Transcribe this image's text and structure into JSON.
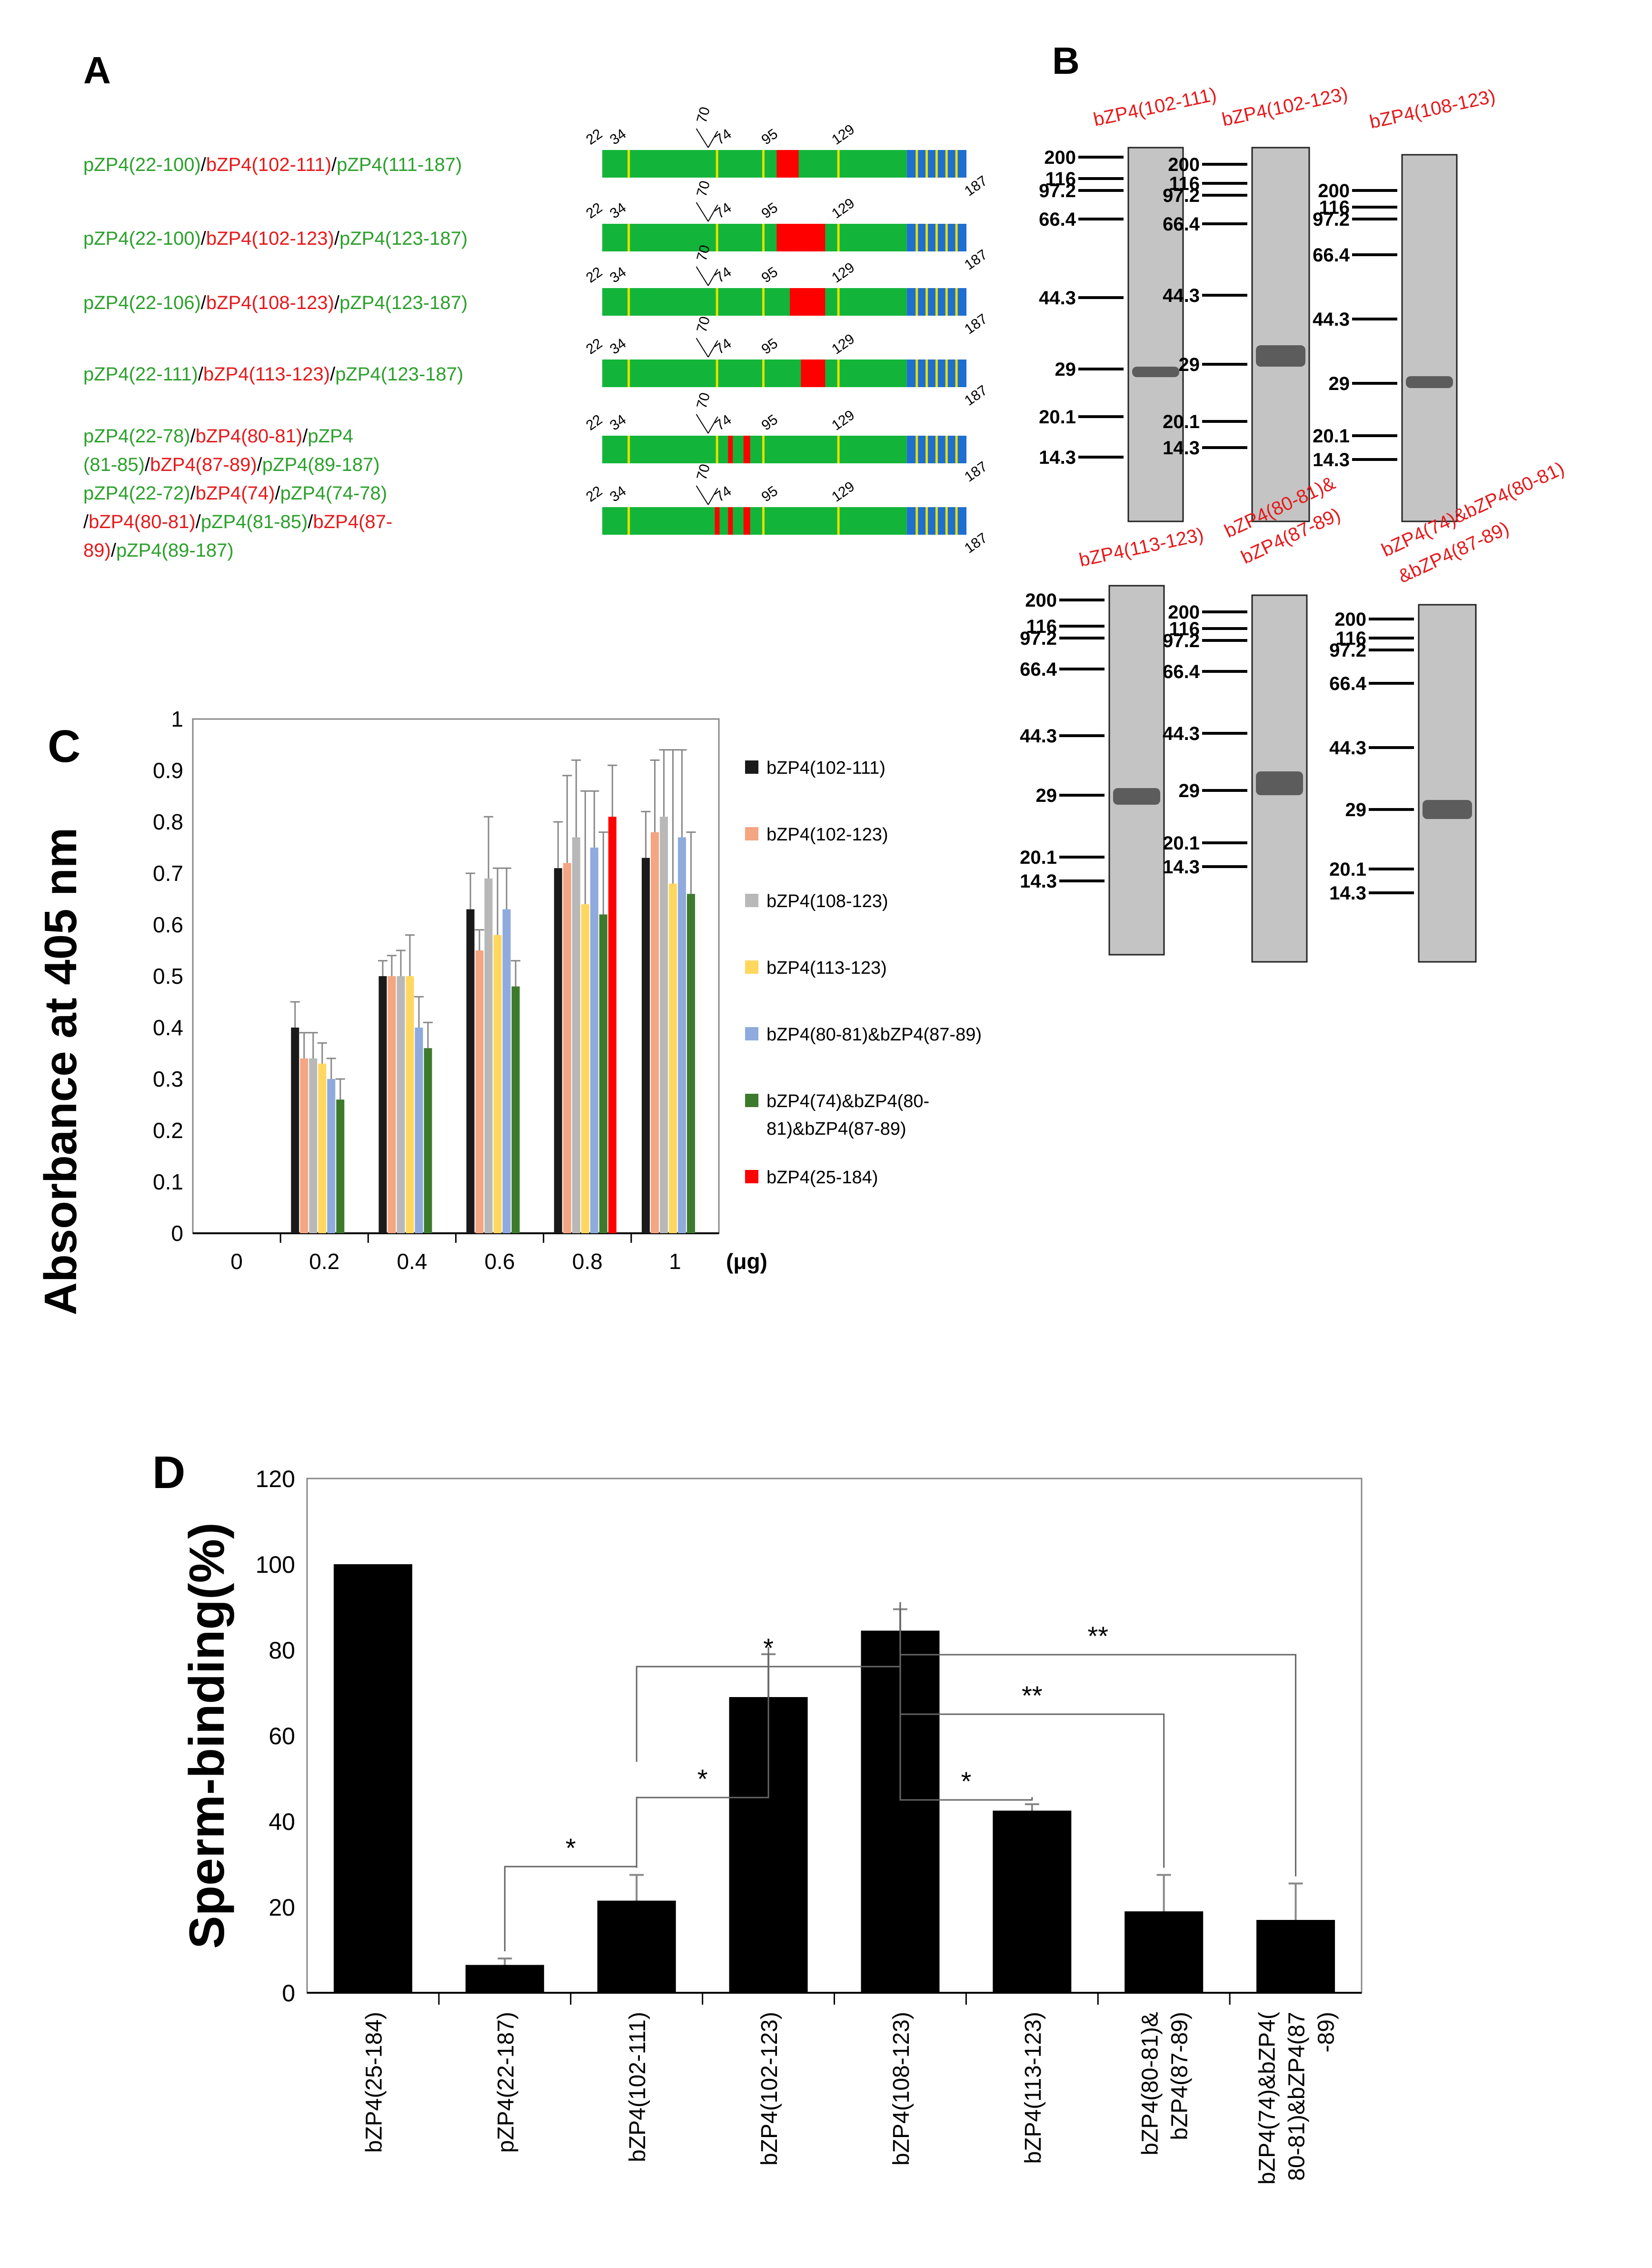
{
  "colors": {
    "green_text": "#2ca02c",
    "red_text": "#e41a1c",
    "construct_green": "#12b53a",
    "construct_blue": "#1f6fd1",
    "construct_red": "#ff0000",
    "construct_yellow": "#e8e000",
    "gel_bg": "#c4c4c4",
    "gel_band": "#4a4a4a"
  },
  "panel_a": {
    "label": "A",
    "constructs": [
      {
        "parts": [
          {
            "text": "pZP4(22-100)",
            "color": "green"
          },
          {
            "text": "/",
            "color": "black"
          },
          {
            "text": "bZP4(102-111)",
            "color": "red"
          },
          {
            "text": "/",
            "color": "black"
          },
          {
            "text": "pZP4(111-187)",
            "color": "green"
          }
        ],
        "red_regions": [
          [
            101,
            111
          ]
        ]
      },
      {
        "parts": [
          {
            "text": "pZP4(22-100)",
            "color": "green"
          },
          {
            "text": "/",
            "color": "black"
          },
          {
            "text": "bZP4(102-123)",
            "color": "red"
          },
          {
            "text": "/",
            "color": "black"
          },
          {
            "text": "pZP4(123-187)",
            "color": "green"
          }
        ],
        "red_regions": [
          [
            101,
            123
          ]
        ]
      },
      {
        "parts": [
          {
            "text": "pZP4(22-106)",
            "color": "green"
          },
          {
            "text": "/",
            "color": "black"
          },
          {
            "text": "bZP4(108-123)",
            "color": "red"
          },
          {
            "text": "/",
            "color": "black"
          },
          {
            "text": "pZP4(123-187)",
            "color": "green"
          }
        ],
        "red_regions": [
          [
            107,
            123
          ]
        ]
      },
      {
        "parts": [
          {
            "text": "pZP4(22-111)",
            "color": "green"
          },
          {
            "text": "/",
            "color": "black"
          },
          {
            "text": "bZP4(113-123)",
            "color": "red"
          },
          {
            "text": "/",
            "color": "black"
          },
          {
            "text": "pZP4(123-187)",
            "color": "green"
          }
        ],
        "red_regions": [
          [
            112,
            123
          ]
        ]
      },
      {
        "parts": [
          {
            "text": "pZP4(22-78)",
            "color": "green"
          },
          {
            "text": "/",
            "color": "black"
          },
          {
            "text": "bZP4(80-81)",
            "color": "red"
          },
          {
            "text": "/",
            "color": "black"
          },
          {
            "text": "pZP4",
            "color": "green"
          },
          {
            "text": "(81-85)",
            "color": "green",
            "newline": true
          },
          {
            "text": "/",
            "color": "black"
          },
          {
            "text": "bZP4(87-89)",
            "color": "red"
          },
          {
            "text": "/",
            "color": "black"
          },
          {
            "text": "pZP4(89-187)",
            "color": "green"
          }
        ],
        "red_regions": [
          [
            79,
            81
          ],
          [
            86,
            89
          ]
        ]
      },
      {
        "parts": [
          {
            "text": "pZP4(22-72)",
            "color": "green"
          },
          {
            "text": "/",
            "color": "black"
          },
          {
            "text": "bZP4(74)",
            "color": "red"
          },
          {
            "text": "/",
            "color": "black"
          },
          {
            "text": "pZP4(74-78)",
            "color": "green"
          },
          {
            "text": "/",
            "color": "black",
            "newline": true
          },
          {
            "text": "bZP4(80-81)",
            "color": "red"
          },
          {
            "text": "/",
            "color": "black"
          },
          {
            "text": "pZP4(81-85)",
            "color": "green"
          },
          {
            "text": "/",
            "color": "black"
          },
          {
            "text": "bZP4(87-",
            "color": "red"
          },
          {
            "text": "89)",
            "color": "red",
            "newline": true
          },
          {
            "text": "/",
            "color": "black"
          },
          {
            "text": "pZP4(89-187)",
            "color": "green"
          }
        ],
        "red_regions": [
          [
            73,
            74
          ],
          [
            79,
            81
          ],
          [
            86,
            89
          ]
        ]
      }
    ],
    "diagram_labels": [
      "22",
      "34",
      "70",
      "74",
      "95",
      "129",
      "187"
    ],
    "domain_range": [
      22,
      187
    ],
    "blue_start": 160,
    "yellow_marks": [
      34,
      74,
      95,
      129
    ]
  },
  "panel_b": {
    "label": "B",
    "gels": [
      {
        "title": "bZP4(102-111)",
        "markers": [
          "200",
          "116",
          "97.2",
          "66.4",
          "44.3",
          "29",
          "20.1",
          "14.3"
        ]
      },
      {
        "title": "bZP4(102-123)",
        "markers": [
          "200",
          "116",
          "97.2",
          "66.4",
          "44.3",
          "29",
          "20.1",
          "14.3"
        ]
      },
      {
        "title": "bZP4(108-123)",
        "markers": [
          "200",
          "116",
          "97.2",
          "66.4",
          "44.3",
          "29",
          "20.1",
          "14.3"
        ]
      },
      {
        "title": "bZP4(113-123)",
        "markers": [
          "200",
          "116",
          "97.2",
          "66.4",
          "44.3",
          "29",
          "20.1",
          "14.3"
        ]
      },
      {
        "title_lines": [
          "bZP4(80-81)&",
          "bZP4(87-89)"
        ],
        "markers": [
          "200",
          "116",
          "97.2",
          "66.4",
          "44.3",
          "29",
          "20.1",
          "14.3"
        ]
      },
      {
        "title_lines": [
          "bZP4(74)&bZP4(80-81)",
          "&bZP4(87-89)"
        ],
        "markers": [
          "200",
          "116",
          "97.2",
          "66.4",
          "44.3",
          "29",
          "20.1",
          "14.3"
        ]
      }
    ]
  },
  "chart_data": [
    {
      "panel": "C",
      "type": "bar",
      "ylabel": "Absorbance at 405  nm",
      "xunit": "(μg)",
      "categories": [
        "0",
        "0.2",
        "0.4",
        "0.6",
        "0.8",
        "1"
      ],
      "ylim": [
        0,
        1
      ],
      "yticks": [
        "0",
        "0.1",
        "0.2",
        "0.3",
        "0.4",
        "0.5",
        "0.6",
        "0.7",
        "0.8",
        "0.9",
        "1"
      ],
      "series": [
        {
          "name": "bZP4(102-111)",
          "color": "#1a1a1a",
          "values": [
            0,
            0.4,
            0.5,
            0.63,
            0.71,
            0.73
          ],
          "errors": [
            0,
            0.05,
            0.03,
            0.07,
            0.09,
            0.09
          ]
        },
        {
          "name": "bZP4(102-123)",
          "color": "#f4a582",
          "values": [
            0,
            0.34,
            0.5,
            0.55,
            0.72,
            0.78
          ],
          "errors": [
            0,
            0.05,
            0.04,
            0.04,
            0.17,
            0.14
          ]
        },
        {
          "name": "bZP4(108-123)",
          "color": "#b8b8b8",
          "values": [
            0,
            0.34,
            0.5,
            0.69,
            0.77,
            0.81
          ],
          "errors": [
            0,
            0.05,
            0.05,
            0.12,
            0.15,
            0.13
          ]
        },
        {
          "name": "bZP4(113-123)",
          "color": "#ffd75e",
          "values": [
            0,
            0.33,
            0.5,
            0.58,
            0.64,
            0.68
          ],
          "errors": [
            0,
            0.04,
            0.08,
            0.13,
            0.22,
            0.26
          ]
        },
        {
          "name": "bZP4(80-81)&bZP4(87-89)",
          "color": "#8faadc",
          "values": [
            0,
            0.3,
            0.4,
            0.63,
            0.75,
            0.77
          ],
          "errors": [
            0,
            0.04,
            0.06,
            0.08,
            0.11,
            0.17
          ]
        },
        {
          "name": "bZP4(74)&bZP4(80-81)&bZP4(87-89)",
          "legend_lines": [
            "bZP4(74)&bZP4(80-",
            "81)&bZP4(87-89)"
          ],
          "color": "#3d7a2c",
          "values": [
            0,
            0.26,
            0.36,
            0.48,
            0.62,
            0.66
          ],
          "errors": [
            0,
            0.04,
            0.05,
            0.05,
            0.16,
            0.12
          ]
        },
        {
          "name": "bZP4(25-184)",
          "color": "#ff0000",
          "values": [
            0,
            0,
            0,
            0,
            0.81,
            0
          ],
          "errors": [
            0,
            0,
            0,
            0,
            0.1,
            0
          ]
        }
      ],
      "legend": "right",
      "label": "C"
    },
    {
      "panel": "D",
      "type": "bar",
      "ylabel": "Sperm-binding(%)",
      "categories": [
        "bZP4(25-184)",
        "pZP4(22-187)",
        "bZP4(102-111)",
        "bZP4(102-123)",
        "bZP4(108-123)",
        "bZP4(113-123)",
        "bZP4(80-81)&bZP4(87-89)",
        "bZP4(74)&bZP4(80-81)&bZP4(87-89)"
      ],
      "category_lines": [
        [
          "bZP4(25-184)"
        ],
        [
          "pZP4(22-187)"
        ],
        [
          "bZP4(102-111)"
        ],
        [
          "bZP4(102-123)"
        ],
        [
          "bZP4(108-123)"
        ],
        [
          "bZP4(113-123)"
        ],
        [
          "bZP4(80-81)&",
          "bZP4(87-89)"
        ],
        [
          "bZP4(74)&bZP4(",
          "80-81)&bZP4(87",
          "-89)"
        ]
      ],
      "values": [
        100,
        6.5,
        21.5,
        69,
        84.5,
        42.5,
        19,
        17
      ],
      "errors": [
        0,
        1.5,
        6,
        10,
        5,
        1.5,
        8.5,
        8.5
      ],
      "ylim": [
        0,
        120
      ],
      "yticks": [
        "0",
        "20",
        "40",
        "60",
        "80",
        "100",
        "120"
      ],
      "significance": [
        {
          "from": 1,
          "to": 2,
          "mark": "*"
        },
        {
          "from": 2,
          "to": 3,
          "mark": "*"
        },
        {
          "from": 2,
          "to": 4,
          "mark": "*"
        },
        {
          "from": 4,
          "to": 5,
          "mark": "*"
        },
        {
          "from": 4,
          "to": 6,
          "mark": "**"
        },
        {
          "from": 4,
          "to": 7,
          "mark": "**"
        }
      ],
      "label": "D"
    }
  ]
}
